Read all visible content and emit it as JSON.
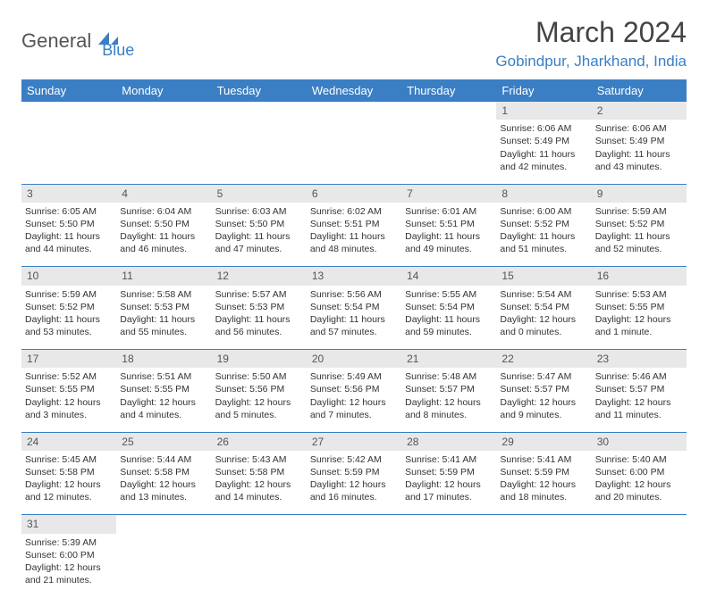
{
  "logo": {
    "part1": "General",
    "part2": "Blue"
  },
  "title": "March 2024",
  "location": "Gobindpur, Jharkhand, India",
  "colors": {
    "accent": "#3a7fc4",
    "header_bg": "#3a7fc4",
    "dayrow_bg": "#e8e8e8",
    "border": "#3a7fc4"
  },
  "weekdays": [
    "Sunday",
    "Monday",
    "Tuesday",
    "Wednesday",
    "Thursday",
    "Friday",
    "Saturday"
  ],
  "weeks": [
    {
      "nums": [
        "",
        "",
        "",
        "",
        "",
        "1",
        "2"
      ],
      "cells": [
        null,
        null,
        null,
        null,
        null,
        {
          "sunrise": "Sunrise: 6:06 AM",
          "sunset": "Sunset: 5:49 PM",
          "day1": "Daylight: 11 hours",
          "day2": "and 42 minutes."
        },
        {
          "sunrise": "Sunrise: 6:06 AM",
          "sunset": "Sunset: 5:49 PM",
          "day1": "Daylight: 11 hours",
          "day2": "and 43 minutes."
        }
      ]
    },
    {
      "nums": [
        "3",
        "4",
        "5",
        "6",
        "7",
        "8",
        "9"
      ],
      "cells": [
        {
          "sunrise": "Sunrise: 6:05 AM",
          "sunset": "Sunset: 5:50 PM",
          "day1": "Daylight: 11 hours",
          "day2": "and 44 minutes."
        },
        {
          "sunrise": "Sunrise: 6:04 AM",
          "sunset": "Sunset: 5:50 PM",
          "day1": "Daylight: 11 hours",
          "day2": "and 46 minutes."
        },
        {
          "sunrise": "Sunrise: 6:03 AM",
          "sunset": "Sunset: 5:50 PM",
          "day1": "Daylight: 11 hours",
          "day2": "and 47 minutes."
        },
        {
          "sunrise": "Sunrise: 6:02 AM",
          "sunset": "Sunset: 5:51 PM",
          "day1": "Daylight: 11 hours",
          "day2": "and 48 minutes."
        },
        {
          "sunrise": "Sunrise: 6:01 AM",
          "sunset": "Sunset: 5:51 PM",
          "day1": "Daylight: 11 hours",
          "day2": "and 49 minutes."
        },
        {
          "sunrise": "Sunrise: 6:00 AM",
          "sunset": "Sunset: 5:52 PM",
          "day1": "Daylight: 11 hours",
          "day2": "and 51 minutes."
        },
        {
          "sunrise": "Sunrise: 5:59 AM",
          "sunset": "Sunset: 5:52 PM",
          "day1": "Daylight: 11 hours",
          "day2": "and 52 minutes."
        }
      ]
    },
    {
      "nums": [
        "10",
        "11",
        "12",
        "13",
        "14",
        "15",
        "16"
      ],
      "cells": [
        {
          "sunrise": "Sunrise: 5:59 AM",
          "sunset": "Sunset: 5:52 PM",
          "day1": "Daylight: 11 hours",
          "day2": "and 53 minutes."
        },
        {
          "sunrise": "Sunrise: 5:58 AM",
          "sunset": "Sunset: 5:53 PM",
          "day1": "Daylight: 11 hours",
          "day2": "and 55 minutes."
        },
        {
          "sunrise": "Sunrise: 5:57 AM",
          "sunset": "Sunset: 5:53 PM",
          "day1": "Daylight: 11 hours",
          "day2": "and 56 minutes."
        },
        {
          "sunrise": "Sunrise: 5:56 AM",
          "sunset": "Sunset: 5:54 PM",
          "day1": "Daylight: 11 hours",
          "day2": "and 57 minutes."
        },
        {
          "sunrise": "Sunrise: 5:55 AM",
          "sunset": "Sunset: 5:54 PM",
          "day1": "Daylight: 11 hours",
          "day2": "and 59 minutes."
        },
        {
          "sunrise": "Sunrise: 5:54 AM",
          "sunset": "Sunset: 5:54 PM",
          "day1": "Daylight: 12 hours",
          "day2": "and 0 minutes."
        },
        {
          "sunrise": "Sunrise: 5:53 AM",
          "sunset": "Sunset: 5:55 PM",
          "day1": "Daylight: 12 hours",
          "day2": "and 1 minute."
        }
      ]
    },
    {
      "nums": [
        "17",
        "18",
        "19",
        "20",
        "21",
        "22",
        "23"
      ],
      "cells": [
        {
          "sunrise": "Sunrise: 5:52 AM",
          "sunset": "Sunset: 5:55 PM",
          "day1": "Daylight: 12 hours",
          "day2": "and 3 minutes."
        },
        {
          "sunrise": "Sunrise: 5:51 AM",
          "sunset": "Sunset: 5:55 PM",
          "day1": "Daylight: 12 hours",
          "day2": "and 4 minutes."
        },
        {
          "sunrise": "Sunrise: 5:50 AM",
          "sunset": "Sunset: 5:56 PM",
          "day1": "Daylight: 12 hours",
          "day2": "and 5 minutes."
        },
        {
          "sunrise": "Sunrise: 5:49 AM",
          "sunset": "Sunset: 5:56 PM",
          "day1": "Daylight: 12 hours",
          "day2": "and 7 minutes."
        },
        {
          "sunrise": "Sunrise: 5:48 AM",
          "sunset": "Sunset: 5:57 PM",
          "day1": "Daylight: 12 hours",
          "day2": "and 8 minutes."
        },
        {
          "sunrise": "Sunrise: 5:47 AM",
          "sunset": "Sunset: 5:57 PM",
          "day1": "Daylight: 12 hours",
          "day2": "and 9 minutes."
        },
        {
          "sunrise": "Sunrise: 5:46 AM",
          "sunset": "Sunset: 5:57 PM",
          "day1": "Daylight: 12 hours",
          "day2": "and 11 minutes."
        }
      ]
    },
    {
      "nums": [
        "24",
        "25",
        "26",
        "27",
        "28",
        "29",
        "30"
      ],
      "cells": [
        {
          "sunrise": "Sunrise: 5:45 AM",
          "sunset": "Sunset: 5:58 PM",
          "day1": "Daylight: 12 hours",
          "day2": "and 12 minutes."
        },
        {
          "sunrise": "Sunrise: 5:44 AM",
          "sunset": "Sunset: 5:58 PM",
          "day1": "Daylight: 12 hours",
          "day2": "and 13 minutes."
        },
        {
          "sunrise": "Sunrise: 5:43 AM",
          "sunset": "Sunset: 5:58 PM",
          "day1": "Daylight: 12 hours",
          "day2": "and 14 minutes."
        },
        {
          "sunrise": "Sunrise: 5:42 AM",
          "sunset": "Sunset: 5:59 PM",
          "day1": "Daylight: 12 hours",
          "day2": "and 16 minutes."
        },
        {
          "sunrise": "Sunrise: 5:41 AM",
          "sunset": "Sunset: 5:59 PM",
          "day1": "Daylight: 12 hours",
          "day2": "and 17 minutes."
        },
        {
          "sunrise": "Sunrise: 5:41 AM",
          "sunset": "Sunset: 5:59 PM",
          "day1": "Daylight: 12 hours",
          "day2": "and 18 minutes."
        },
        {
          "sunrise": "Sunrise: 5:40 AM",
          "sunset": "Sunset: 6:00 PM",
          "day1": "Daylight: 12 hours",
          "day2": "and 20 minutes."
        }
      ]
    },
    {
      "nums": [
        "31",
        "",
        "",
        "",
        "",
        "",
        ""
      ],
      "cells": [
        {
          "sunrise": "Sunrise: 5:39 AM",
          "sunset": "Sunset: 6:00 PM",
          "day1": "Daylight: 12 hours",
          "day2": "and 21 minutes."
        },
        null,
        null,
        null,
        null,
        null,
        null
      ]
    }
  ]
}
